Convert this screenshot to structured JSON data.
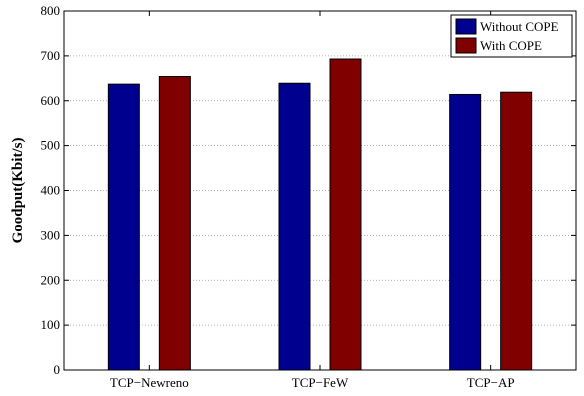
{
  "chart_data": {
    "type": "bar",
    "title": "",
    "xlabel": "",
    "ylabel": "Goodput(Kbit/s)",
    "categories": [
      "TCP−Newreno",
      "TCP−FeW",
      "TCP−AP"
    ],
    "series": [
      {
        "name": "Without COPE",
        "color": "#00008f",
        "values": [
          637,
          639,
          614
        ]
      },
      {
        "name": "With COPE",
        "color": "#800000",
        "values": [
          654,
          693,
          619
        ]
      }
    ],
    "ylim": [
      0,
      800
    ],
    "yticks": [
      0,
      100,
      200,
      300,
      400,
      500,
      600,
      700,
      800
    ],
    "grid": true,
    "legend_position": "top-right"
  }
}
